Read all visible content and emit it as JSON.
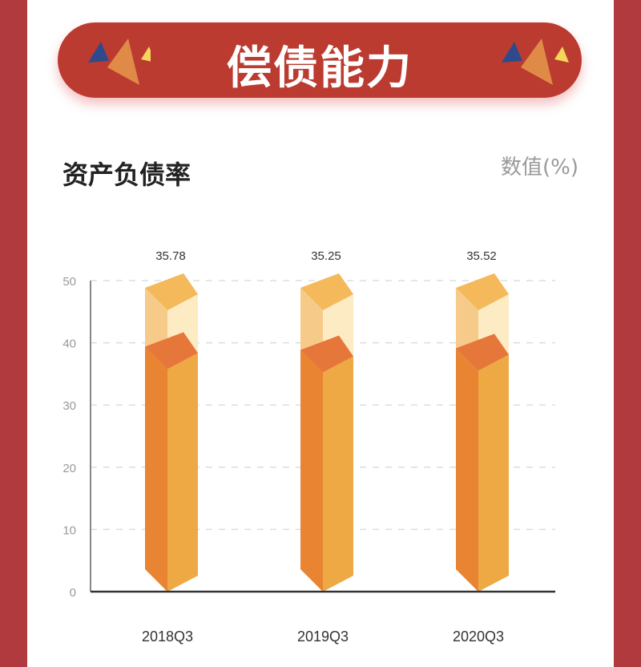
{
  "banner": {
    "title": "偿债能力"
  },
  "section": {
    "title": "资产负债率",
    "unit": "数值(%)"
  },
  "colors": {
    "border": "#b03a3e",
    "banner": "#bb3b31",
    "bar_front": "#e88432",
    "bar_side": "#eea945",
    "bar_top": "#e6773a",
    "bg_top": "#f3b95a",
    "bg_front": "#f6cb8a",
    "bg_side": "#fdebc4"
  },
  "chart_data": {
    "type": "bar",
    "style": "3d-pictorial",
    "categories": [
      "2018Q3",
      "2019Q3",
      "2020Q3"
    ],
    "values": [
      35.78,
      35.25,
      35.52
    ],
    "background_max": 50,
    "ylim": [
      0,
      50
    ],
    "yticks": [
      0,
      10,
      20,
      30,
      40,
      50
    ],
    "grid": true,
    "data_labels": [
      "35.78",
      "35.25",
      "35.52"
    ]
  }
}
